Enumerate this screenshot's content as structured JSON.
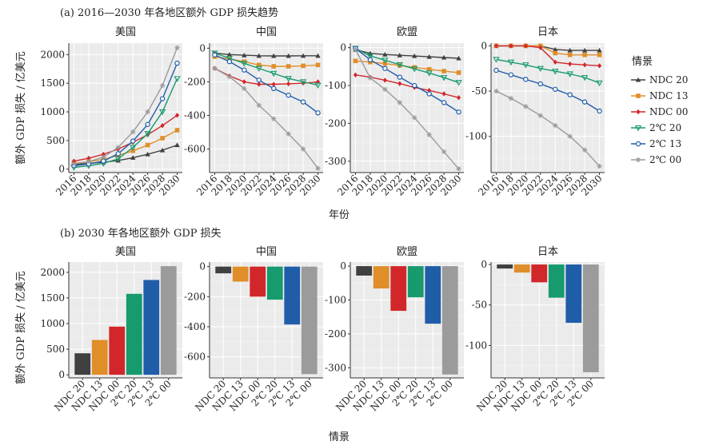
{
  "section_a": {
    "title": "(a) 2016—2030 年各地区额外 GDP 损失趋势"
  },
  "section_b": {
    "title": "(b) 2030 年各地区额外 GDP 损失"
  },
  "legend": {
    "title": "情景",
    "items": [
      {
        "name": "NDC 20",
        "color": "#404040",
        "marker": "triangle-up"
      },
      {
        "name": "NDC 13",
        "color": "#e08e2a",
        "marker": "square"
      },
      {
        "name": "NDC 00",
        "color": "#d1272b",
        "marker": "diamond"
      },
      {
        "name": "2℃ 20",
        "color": "#179a6e",
        "marker": "triangle-down"
      },
      {
        "name": "2℃ 13",
        "color": "#1f5da9",
        "marker": "circle"
      },
      {
        "name": "2℃ 00",
        "color": "#9b9b9b",
        "marker": "star"
      }
    ]
  },
  "chart_data": [
    {
      "type": "line",
      "section": "a",
      "xlabel": "年份",
      "ylabel": "额外 GDP 损失 / 亿美元",
      "x_ticks": [
        2016,
        2018,
        2020,
        2022,
        2024,
        2026,
        2028,
        2030
      ],
      "panels": [
        {
          "title": "美国",
          "ylim": [
            -60,
            2200
          ],
          "y_ticks": [
            0,
            500,
            1000,
            1500,
            2000
          ],
          "series": [
            {
              "name": "NDC 20",
              "x": [
                2016,
                2018,
                2020,
                2022,
                2024,
                2026,
                2028,
                2030
              ],
              "values": [
                80,
                100,
                120,
                150,
                200,
                260,
                330,
                420
              ]
            },
            {
              "name": "NDC 13",
              "x": [
                2016,
                2018,
                2020,
                2022,
                2024,
                2026,
                2028,
                2030
              ],
              "values": [
                100,
                130,
                170,
                240,
                320,
                420,
                540,
                680
              ]
            },
            {
              "name": "NDC 00",
              "x": [
                2016,
                2018,
                2020,
                2022,
                2024,
                2026,
                2028,
                2030
              ],
              "values": [
                140,
                190,
                260,
                350,
                470,
                600,
                760,
                940
              ]
            },
            {
              "name": "2℃ 20",
              "x": [
                2016,
                2018,
                2020,
                2022,
                2024,
                2026,
                2028,
                2030
              ],
              "values": [
                30,
                60,
                100,
                180,
                380,
                620,
                1000,
                1580
              ]
            },
            {
              "name": "2℃ 13",
              "x": [
                2016,
                2018,
                2020,
                2022,
                2024,
                2026,
                2028,
                2030
              ],
              "values": [
                60,
                90,
                140,
                270,
                490,
                780,
                1230,
                1850
              ]
            },
            {
              "name": "2℃ 00",
              "x": [
                2016,
                2018,
                2020,
                2022,
                2024,
                2026,
                2028,
                2030
              ],
              "values": [
                90,
                130,
                210,
                380,
                650,
                1000,
                1460,
                2120
              ]
            }
          ]
        },
        {
          "title": "中国",
          "ylim": [
            -740,
            30
          ],
          "y_ticks": [
            0,
            -200,
            -400,
            -600
          ],
          "series": [
            {
              "name": "NDC 20",
              "x": [
                2016,
                2018,
                2020,
                2022,
                2024,
                2026,
                2028,
                2030
              ],
              "values": [
                -30,
                -38,
                -42,
                -45,
                -46,
                -46,
                -45,
                -45
              ]
            },
            {
              "name": "NDC 13",
              "x": [
                2016,
                2018,
                2020,
                2022,
                2024,
                2026,
                2028,
                2030
              ],
              "values": [
                -50,
                -65,
                -80,
                -100,
                -108,
                -108,
                -105,
                -100
              ]
            },
            {
              "name": "NDC 00",
              "x": [
                2016,
                2018,
                2020,
                2022,
                2024,
                2026,
                2028,
                2030
              ],
              "values": [
                -120,
                -165,
                -200,
                -215,
                -215,
                -212,
                -208,
                -200
              ]
            },
            {
              "name": "2℃ 20",
              "x": [
                2016,
                2018,
                2020,
                2022,
                2024,
                2026,
                2028,
                2030
              ],
              "values": [
                -30,
                -60,
                -90,
                -120,
                -150,
                -180,
                -200,
                -220
              ]
            },
            {
              "name": "2℃ 13",
              "x": [
                2016,
                2018,
                2020,
                2022,
                2024,
                2026,
                2028,
                2030
              ],
              "values": [
                -40,
                -80,
                -130,
                -190,
                -240,
                -280,
                -320,
                -385
              ]
            },
            {
              "name": "2℃ 00",
              "x": [
                2016,
                2018,
                2020,
                2022,
                2024,
                2026,
                2028,
                2030
              ],
              "values": [
                -120,
                -170,
                -240,
                -340,
                -420,
                -510,
                -600,
                -715
              ]
            }
          ]
        },
        {
          "title": "欧盟",
          "ylim": [
            -330,
            12
          ],
          "y_ticks": [
            0,
            -100,
            -200,
            -300
          ],
          "series": [
            {
              "name": "NDC 20",
              "x": [
                2016,
                2018,
                2020,
                2022,
                2024,
                2026,
                2028,
                2030
              ],
              "values": [
                -5,
                -15,
                -18,
                -20,
                -22,
                -24,
                -26,
                -28
              ]
            },
            {
              "name": "NDC 13",
              "x": [
                2016,
                2018,
                2020,
                2022,
                2024,
                2026,
                2028,
                2030
              ],
              "values": [
                -35,
                -38,
                -42,
                -47,
                -52,
                -57,
                -62,
                -66
              ]
            },
            {
              "name": "NDC 00",
              "x": [
                2016,
                2018,
                2020,
                2022,
                2024,
                2026,
                2028,
                2030
              ],
              "values": [
                -72,
                -78,
                -86,
                -95,
                -105,
                -113,
                -122,
                -132
              ]
            },
            {
              "name": "2℃ 20",
              "x": [
                2016,
                2018,
                2020,
                2022,
                2024,
                2026,
                2028,
                2030
              ],
              "values": [
                -2,
                -22,
                -33,
                -45,
                -56,
                -67,
                -79,
                -92
              ]
            },
            {
              "name": "2℃ 13",
              "x": [
                2016,
                2018,
                2020,
                2022,
                2024,
                2026,
                2028,
                2030
              ],
              "values": [
                -2,
                -32,
                -55,
                -78,
                -100,
                -122,
                -145,
                -170
              ]
            },
            {
              "name": "2℃ 00",
              "x": [
                2016,
                2018,
                2020,
                2022,
                2024,
                2026,
                2028,
                2030
              ],
              "values": [
                -5,
                -80,
                -110,
                -145,
                -185,
                -230,
                -275,
                -320
              ]
            }
          ]
        },
        {
          "title": "日本",
          "ylim": [
            -140,
            3
          ],
          "y_ticks": [
            0,
            -50,
            -100
          ],
          "series": [
            {
              "name": "NDC 20",
              "x": [
                2016,
                2018,
                2020,
                2022,
                2024,
                2026,
                2028,
                2030
              ],
              "values": [
                0,
                0,
                0,
                0,
                -4,
                -5,
                -5,
                -5
              ]
            },
            {
              "name": "NDC 13",
              "x": [
                2016,
                2018,
                2020,
                2022,
                2024,
                2026,
                2028,
                2030
              ],
              "values": [
                0,
                0,
                0,
                0,
                -8,
                -10,
                -10,
                -10
              ]
            },
            {
              "name": "NDC 00",
              "x": [
                2016,
                2018,
                2020,
                2022,
                2024,
                2026,
                2028,
                2030
              ],
              "values": [
                0,
                0,
                0,
                -2,
                -18,
                -20,
                -21,
                -22
              ]
            },
            {
              "name": "2℃ 20",
              "x": [
                2016,
                2018,
                2020,
                2022,
                2024,
                2026,
                2028,
                2030
              ],
              "values": [
                -15,
                -18,
                -21,
                -25,
                -28,
                -31,
                -35,
                -41
              ]
            },
            {
              "name": "2℃ 13",
              "x": [
                2016,
                2018,
                2020,
                2022,
                2024,
                2026,
                2028,
                2030
              ],
              "values": [
                -27,
                -32,
                -37,
                -42,
                -48,
                -54,
                -62,
                -72
              ]
            },
            {
              "name": "2℃ 00",
              "x": [
                2016,
                2018,
                2020,
                2022,
                2024,
                2026,
                2028,
                2030
              ],
              "values": [
                -50,
                -58,
                -67,
                -77,
                -88,
                -100,
                -115,
                -133
              ]
            }
          ]
        }
      ]
    },
    {
      "type": "bar",
      "section": "b",
      "xlabel": "情景",
      "ylabel": "额外 GDP 损失 / 亿美元",
      "categories": [
        "NDC 20",
        "NDC 13",
        "NDC 00",
        "2℃ 20",
        "2℃ 13",
        "2℃ 00"
      ],
      "panels": [
        {
          "title": "美国",
          "ylim": [
            -60,
            2200
          ],
          "y_ticks": [
            0,
            500,
            1000,
            1500,
            2000
          ],
          "values": [
            420,
            680,
            940,
            1580,
            1850,
            2120
          ]
        },
        {
          "title": "中国",
          "ylim": [
            -740,
            30
          ],
          "y_ticks": [
            0,
            -200,
            -400,
            -600
          ],
          "values": [
            -45,
            -100,
            -200,
            -220,
            -385,
            -715
          ]
        },
        {
          "title": "欧盟",
          "ylim": [
            -330,
            12
          ],
          "y_ticks": [
            0,
            -100,
            -200,
            -300
          ],
          "values": [
            -28,
            -66,
            -132,
            -92,
            -170,
            -320
          ]
        },
        {
          "title": "日本",
          "ylim": [
            -140,
            3
          ],
          "y_ticks": [
            0,
            -50,
            -100
          ],
          "values": [
            -5,
            -10,
            -22,
            -41,
            -72,
            -133
          ]
        }
      ]
    }
  ]
}
